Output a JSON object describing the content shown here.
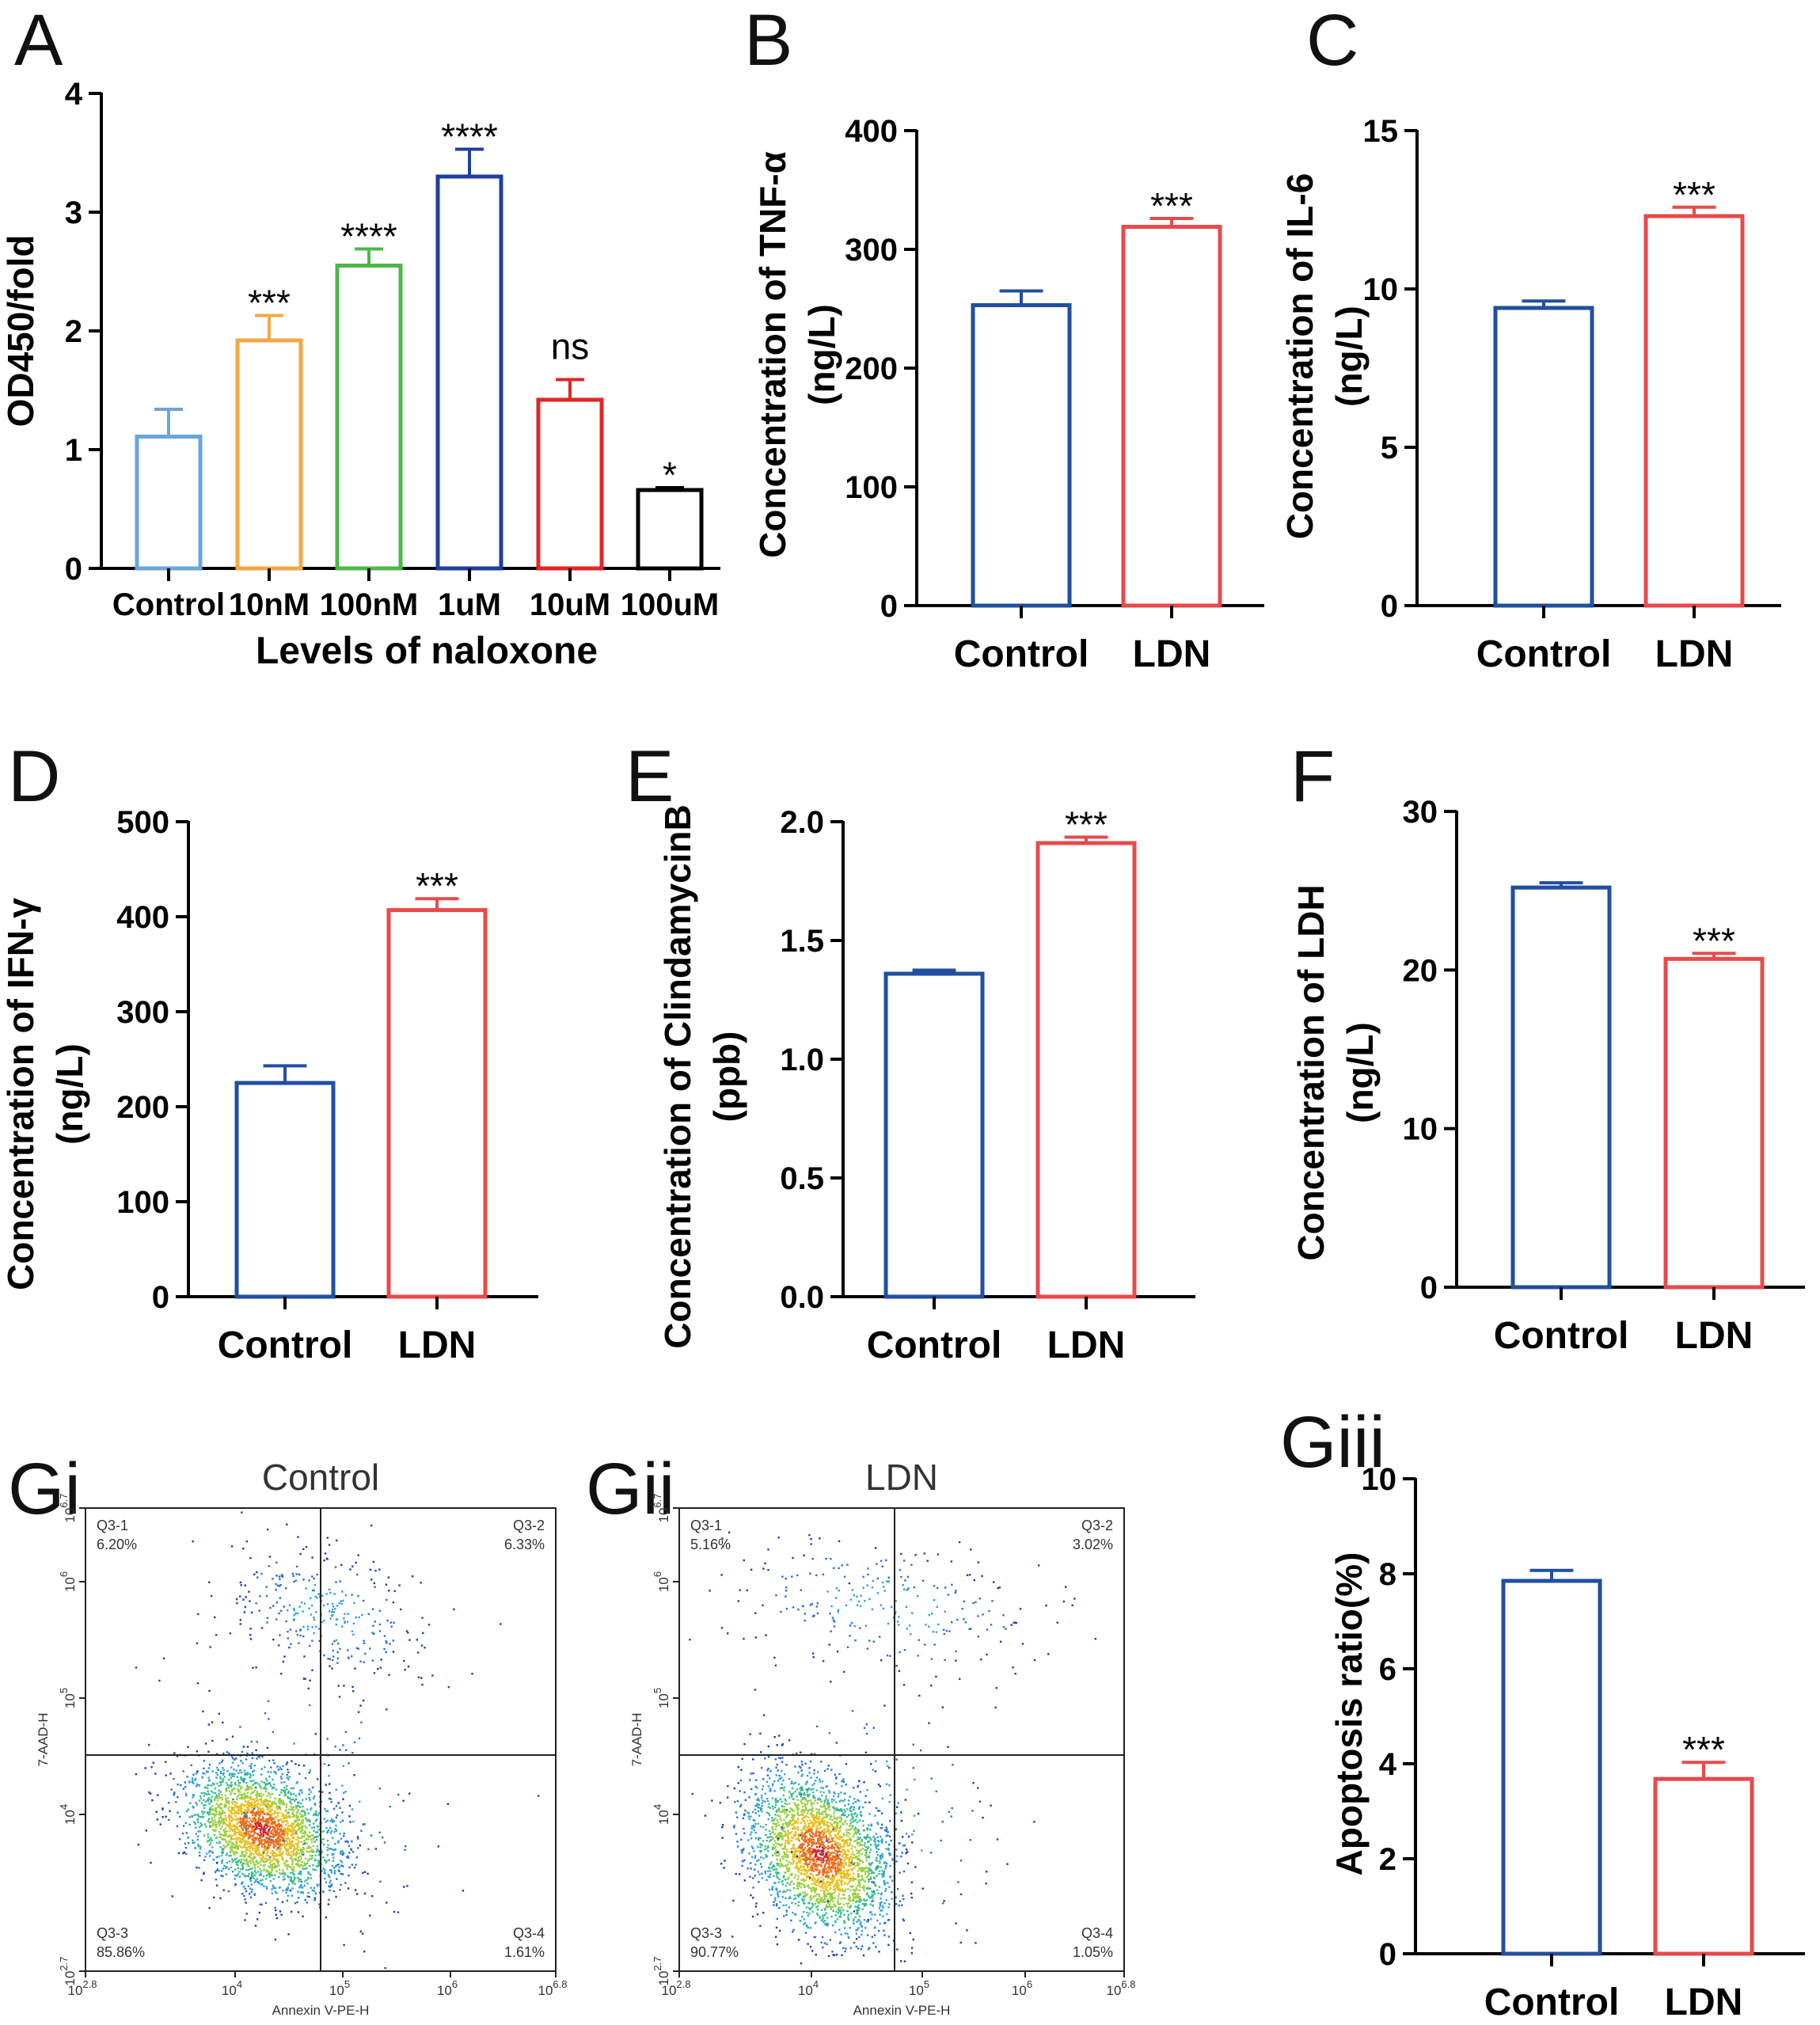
{
  "chart_data": [
    {
      "panel": "A",
      "type": "bar",
      "xlabel": "Levels of naloxone",
      "ylabel": "OD450/fold",
      "ylim": [
        0,
        4
      ],
      "yticks": [
        "0",
        "1",
        "2",
        "3",
        "4"
      ],
      "categories": [
        "Control",
        "10nM",
        "100nM",
        "1uM",
        "10uM",
        "100uM"
      ],
      "values": [
        1.11,
        1.92,
        2.55,
        3.3,
        1.42,
        0.66
      ],
      "errors": [
        0.23,
        0.21,
        0.14,
        0.23,
        0.17,
        0.02
      ],
      "significance": [
        "",
        "***",
        "****",
        "****",
        "ns",
        "*"
      ],
      "colors": [
        "#6aa6d6",
        "#f0a848",
        "#4cb848",
        "#1f3f9e",
        "#e02626",
        "#000000"
      ]
    },
    {
      "panel": "B",
      "type": "bar",
      "xlabel": "",
      "ylabel": "Concentration of TNF-α",
      "ylabel2": "(ng/L)",
      "ylim": [
        0,
        400
      ],
      "yticks": [
        "0",
        "100",
        "200",
        "300",
        "400"
      ],
      "categories": [
        "Control",
        "LDN"
      ],
      "values": [
        253,
        319
      ],
      "errors": [
        12,
        7
      ],
      "significance": [
        "",
        "***"
      ],
      "colors": [
        "#1f4fa0",
        "#e84a4a"
      ]
    },
    {
      "panel": "C",
      "type": "bar",
      "xlabel": "",
      "ylabel": "Concentration of IL-6",
      "ylabel2": "(ng/L)",
      "ylim": [
        0,
        15
      ],
      "yticks": [
        "0",
        "5",
        "10",
        "15"
      ],
      "categories": [
        "Control",
        "LDN"
      ],
      "values": [
        9.4,
        12.3
      ],
      "errors": [
        0.22,
        0.28
      ],
      "significance": [
        "",
        "***"
      ],
      "colors": [
        "#1f4fa0",
        "#e84a4a"
      ]
    },
    {
      "panel": "D",
      "type": "bar",
      "xlabel": "",
      "ylabel": "Concentration of IFN-γ",
      "ylabel2": "(ng/L)",
      "ylim": [
        0,
        500
      ],
      "yticks": [
        "0",
        "100",
        "200",
        "300",
        "400",
        "500"
      ],
      "categories": [
        "Control",
        "LDN"
      ],
      "values": [
        225,
        407
      ],
      "errors": [
        18,
        12
      ],
      "significance": [
        "",
        "***"
      ],
      "colors": [
        "#1f4fa0",
        "#e84a4a"
      ]
    },
    {
      "panel": "E",
      "type": "bar",
      "xlabel": "",
      "ylabel": "Concentration of ClindamycinB",
      "ylabel2": "(ppb)",
      "ylim": [
        0,
        2
      ],
      "yticks": [
        "0.0",
        "0.5",
        "1.0",
        "1.5",
        "2.0"
      ],
      "categories": [
        "Control",
        "LDN"
      ],
      "values": [
        1.36,
        1.91
      ],
      "errors": [
        0.015,
        0.025
      ],
      "significance": [
        "",
        "***"
      ],
      "colors": [
        "#1f4fa0",
        "#e84a4a"
      ]
    },
    {
      "panel": "F",
      "type": "bar",
      "xlabel": "",
      "ylabel": "Concentration of LDH",
      "ylabel2": "(ng/L)",
      "ylim": [
        0,
        30
      ],
      "yticks": [
        "0",
        "10",
        "20",
        "30"
      ],
      "categories": [
        "Control",
        "LDN"
      ],
      "values": [
        25.2,
        20.7
      ],
      "errors": [
        0.3,
        0.35
      ],
      "significance": [
        "",
        "***"
      ],
      "colors": [
        "#1f4fa0",
        "#e84a4a"
      ]
    },
    {
      "panel": "Gi",
      "type": "scatter",
      "title": "Control",
      "xlabel": "Annexin V-PE-H",
      "ylabel": "7-AAD-H",
      "x_ticks": [
        "10",
        "10",
        "10",
        "10",
        "10"
      ],
      "x_tick_exponents": [
        "2.8",
        "4",
        "5",
        "6",
        "6.8"
      ],
      "y_ticks": [
        "10",
        "10",
        "10",
        "10",
        "10"
      ],
      "y_tick_exponents": [
        "2.7",
        "4",
        "5",
        "6",
        "6.7"
      ],
      "quadrants": [
        {
          "label": "Q3-1",
          "value": "6.20%"
        },
        {
          "label": "Q3-2",
          "value": "6.33%"
        },
        {
          "label": "Q3-3",
          "value": "85.86%"
        },
        {
          "label": "Q3-4",
          "value": "1.61%"
        }
      ]
    },
    {
      "panel": "Gii",
      "type": "scatter",
      "title": "LDN",
      "xlabel": "Annexin V-PE-H",
      "ylabel": "7-AAD-H",
      "x_ticks": [
        "10",
        "10",
        "10",
        "10",
        "10"
      ],
      "x_tick_exponents": [
        "2.8",
        "4",
        "5",
        "6",
        "6.8"
      ],
      "y_ticks": [
        "10",
        "10",
        "10",
        "10",
        "10"
      ],
      "y_tick_exponents": [
        "2.7",
        "4",
        "5",
        "6",
        "6.7"
      ],
      "quadrants": [
        {
          "label": "Q3-1",
          "value": "5.16%"
        },
        {
          "label": "Q3-2",
          "value": "3.02%"
        },
        {
          "label": "Q3-3",
          "value": "90.77%"
        },
        {
          "label": "Q3-4",
          "value": "1.05%"
        }
      ]
    },
    {
      "panel": "Giii",
      "type": "bar",
      "xlabel": "",
      "ylabel": "Apoptosis ratio(%)",
      "ylim": [
        0,
        10
      ],
      "yticks": [
        "0",
        "2",
        "4",
        "6",
        "8",
        "10"
      ],
      "categories": [
        "Control",
        "LDN"
      ],
      "values": [
        7.85,
        3.68
      ],
      "errors": [
        0.22,
        0.35
      ],
      "significance": [
        "",
        "***"
      ],
      "colors": [
        "#1f4fa0",
        "#e84a4a"
      ]
    }
  ]
}
